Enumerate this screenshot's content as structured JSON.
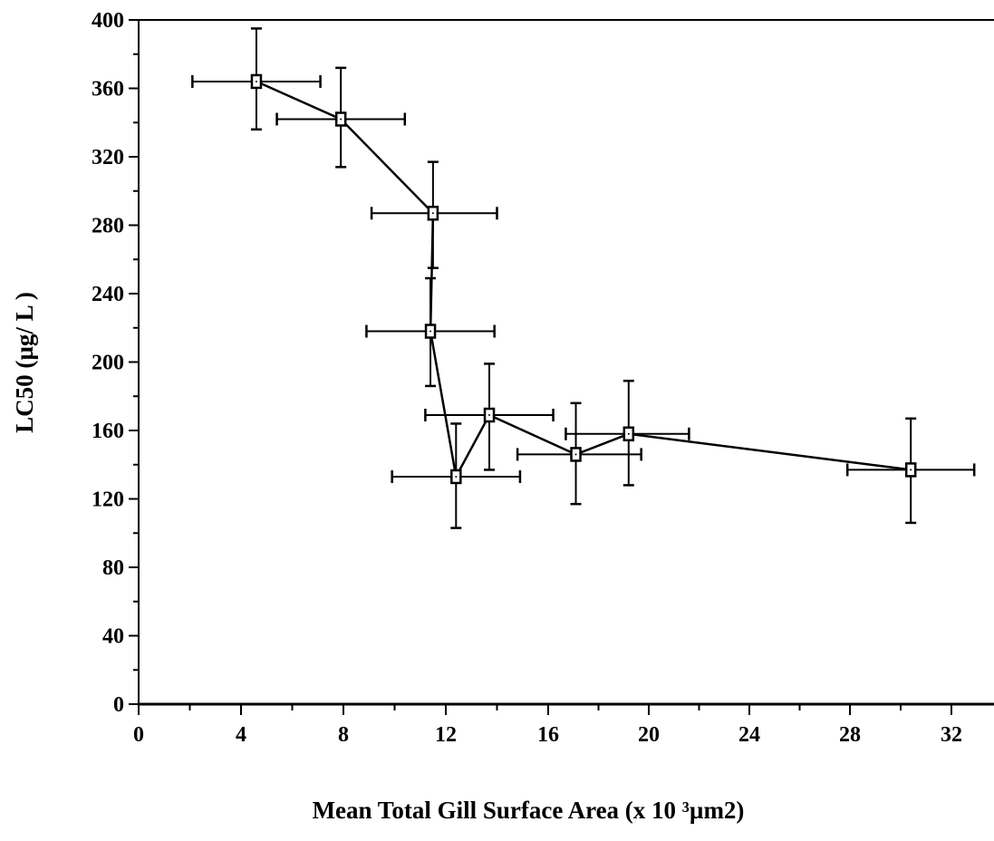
{
  "chart_data": {
    "type": "scatter",
    "xlabel": "Mean Total Gill Surface Area (x 10 ³µm2)",
    "ylabel": "LC50 (µg/ L )",
    "x_tick_labels": [
      "0",
      "4",
      "8",
      "12",
      "16",
      "20",
      "24",
      "28",
      "32"
    ],
    "y_tick_labels": [
      "0",
      "40",
      "80",
      "120",
      "160",
      "200",
      "240",
      "280",
      "320",
      "360",
      "400"
    ],
    "ylim": [
      0,
      400
    ],
    "grid": false,
    "legend": "none",
    "connected_line": true,
    "marker": "open-square",
    "points": [
      {
        "x": 4.6,
        "y": 364,
        "x_err_low": 2.1,
        "x_err_high": 7.1,
        "y_err_low": 336,
        "y_err_high": 395
      },
      {
        "x": 7.9,
        "y": 342,
        "x_err_low": 5.4,
        "x_err_high": 10.4,
        "y_err_low": 314,
        "y_err_high": 372
      },
      {
        "x": 11.5,
        "y": 287,
        "x_err_low": 9.1,
        "x_err_high": 14.0,
        "y_err_low": 255,
        "y_err_high": 317
      },
      {
        "x": 11.4,
        "y": 218,
        "x_err_low": 8.9,
        "x_err_high": 13.9,
        "y_err_low": 186,
        "y_err_high": 249
      },
      {
        "x": 12.4,
        "y": 133,
        "x_err_low": 9.9,
        "x_err_high": 14.9,
        "y_err_low": 103,
        "y_err_high": 164
      },
      {
        "x": 13.7,
        "y": 169,
        "x_err_low": 11.2,
        "x_err_high": 16.2,
        "y_err_low": 137,
        "y_err_high": 199
      },
      {
        "x": 17.1,
        "y": 146,
        "x_err_low": 14.8,
        "x_err_high": 19.7,
        "y_err_low": 117,
        "y_err_high": 176
      },
      {
        "x": 19.2,
        "y": 158,
        "x_err_low": 16.7,
        "x_err_high": 21.6,
        "y_err_low": 128,
        "y_err_high": 189
      },
      {
        "x": 30.4,
        "y": 137,
        "x_err_low": 27.9,
        "x_err_high": 32.9,
        "y_err_low": 106,
        "y_err_high": 167
      }
    ],
    "colors": {
      "line": "#000000",
      "marker_fill": "#ffffff",
      "background": "#ffffff"
    }
  }
}
